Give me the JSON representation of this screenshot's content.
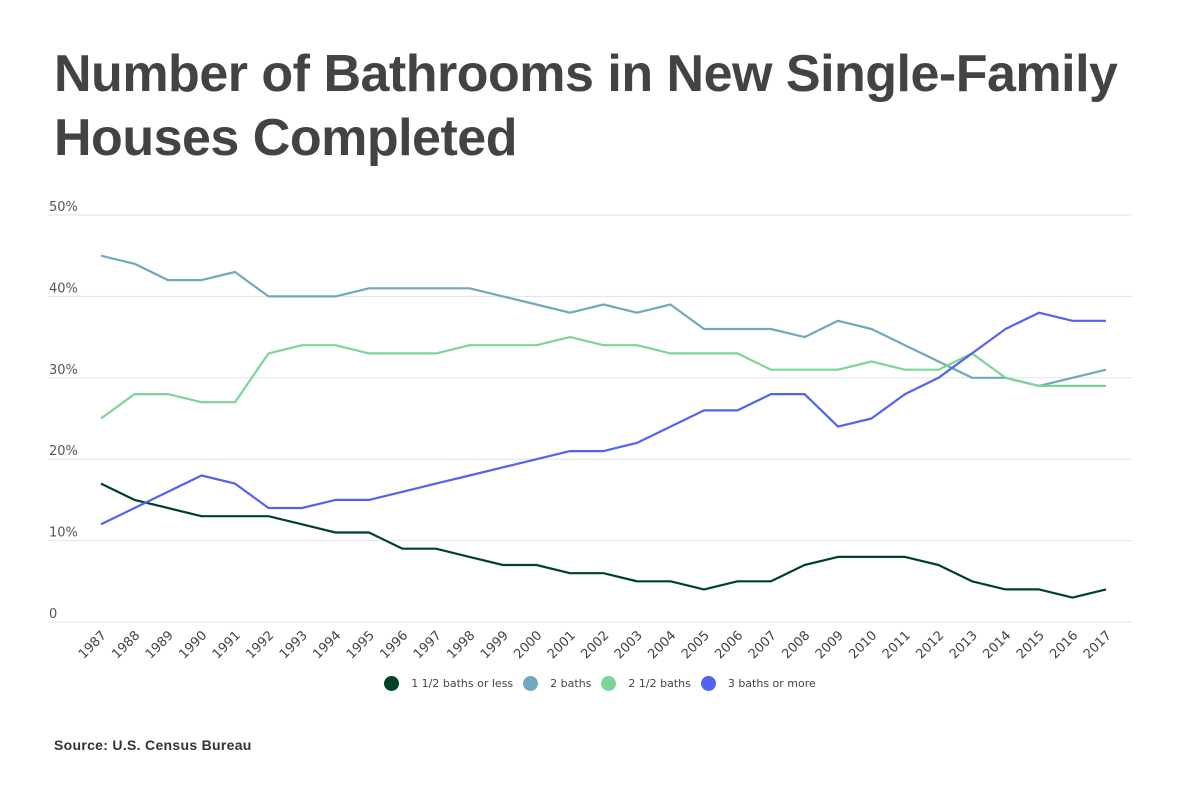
{
  "chart_data": {
    "type": "line",
    "title": "Number of Bathrooms in New Single-Family Houses Completed",
    "xlabel": "",
    "ylabel": "",
    "ylim": [
      0,
      50
    ],
    "yticks": [
      0,
      10,
      20,
      30,
      40,
      50
    ],
    "ytick_labels": [
      "0",
      "10%",
      "20%",
      "30%",
      "40%",
      "50%"
    ],
    "grid": true,
    "legend_position": "bottom-center",
    "x": [
      "1987",
      "1988",
      "1989",
      "1990",
      "1991",
      "1992",
      "1993",
      "1994",
      "1995",
      "1996",
      "1997",
      "1998",
      "1999",
      "2000",
      "2001",
      "2002",
      "2003",
      "2004",
      "2005",
      "2006",
      "2007",
      "2008",
      "2009",
      "2010",
      "2011",
      "2012",
      "2013",
      "2014",
      "2015",
      "2016",
      "2017"
    ],
    "series": [
      {
        "name": "1 1/2 baths or less",
        "color": "#004225",
        "values": [
          17,
          15,
          14,
          13,
          13,
          13,
          12,
          11,
          11,
          9,
          9,
          8,
          7,
          7,
          6,
          6,
          5,
          5,
          4,
          5,
          5,
          7,
          8,
          8,
          8,
          7,
          5,
          4,
          4,
          3,
          4
        ]
      },
      {
        "name": "2 baths",
        "color": "#70a8bd",
        "values": [
          45,
          44,
          42,
          42,
          43,
          40,
          40,
          40,
          41,
          41,
          41,
          41,
          40,
          39,
          38,
          39,
          38,
          39,
          36,
          36,
          36,
          35,
          37,
          36,
          34,
          32,
          30,
          30,
          29,
          30,
          31
        ]
      },
      {
        "name": "2 1/2 baths",
        "color": "#7bd598",
        "values": [
          25,
          28,
          28,
          27,
          27,
          33,
          34,
          34,
          33,
          33,
          33,
          34,
          34,
          34,
          35,
          34,
          34,
          33,
          33,
          33,
          31,
          31,
          31,
          32,
          31,
          31,
          33,
          30,
          29,
          29,
          29
        ]
      },
      {
        "name": "3 baths or more",
        "color": "#5163f0",
        "values": [
          12,
          14,
          16,
          18,
          17,
          14,
          14,
          15,
          15,
          16,
          17,
          18,
          19,
          20,
          21,
          21,
          22,
          24,
          26,
          26,
          28,
          28,
          24,
          25,
          28,
          30,
          33,
          36,
          38,
          37,
          37
        ]
      }
    ],
    "source": "Source: U.S. Census Bureau"
  },
  "header": {
    "title_line1": "Number of Bathrooms in New Single-Family",
    "title_line2": "Houses Completed"
  },
  "footer": {
    "source": "Source: U.S. Census Bureau"
  }
}
